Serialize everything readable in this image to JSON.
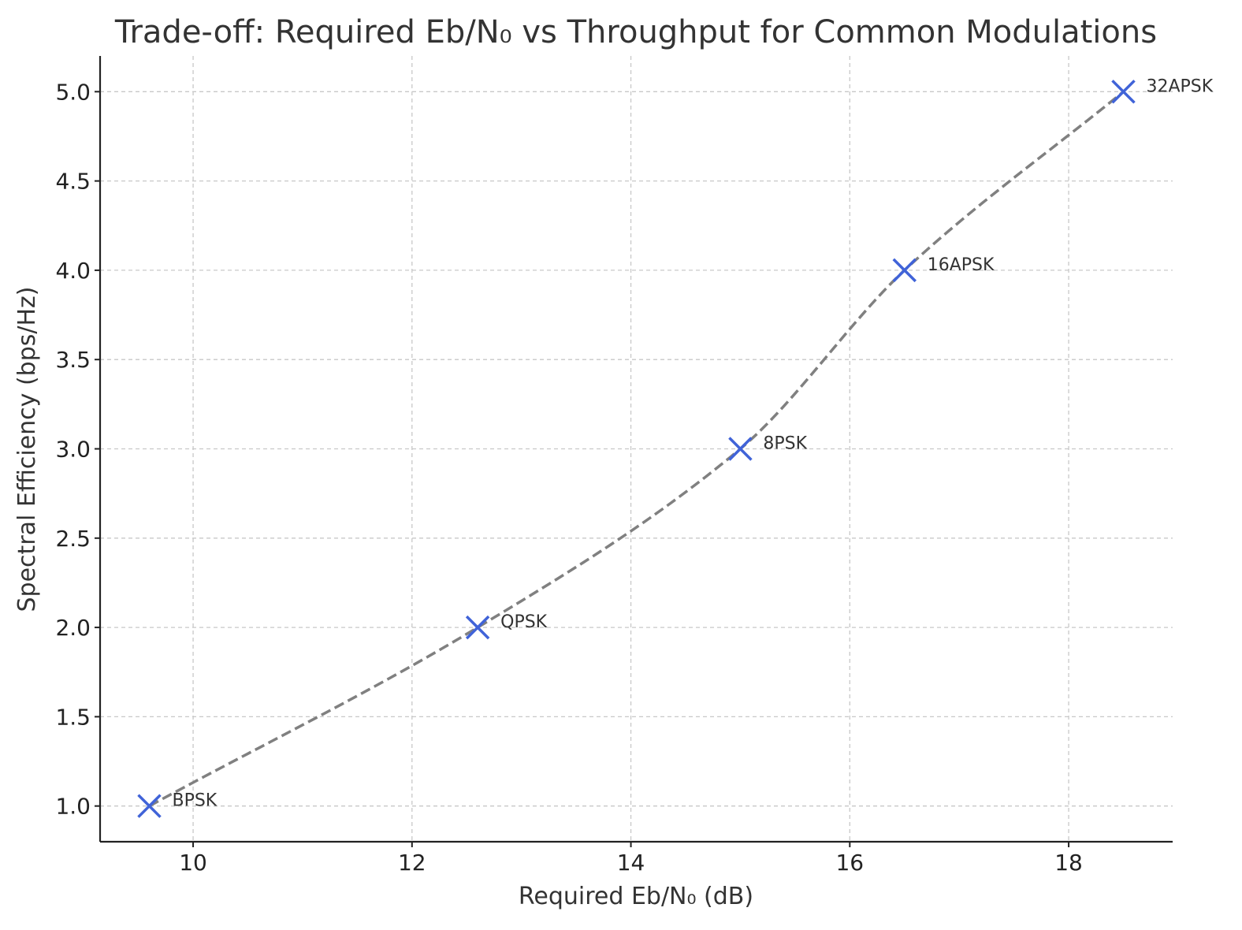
{
  "chart_data": {
    "type": "line",
    "title": "Trade-off: Required Eb/N₀ vs Throughput for Common Modulations",
    "xlabel": "Required Eb/N₀ (dB)",
    "ylabel": "Spectral Efficiency (bps/Hz)",
    "xlim": [
      9.15,
      18.95
    ],
    "ylim": [
      0.8,
      5.2
    ],
    "xticks": [
      10,
      12,
      14,
      16,
      18
    ],
    "xtick_labels": [
      "10",
      "12",
      "14",
      "16",
      "18"
    ],
    "yticks": [
      1.0,
      1.5,
      2.0,
      2.5,
      3.0,
      3.5,
      4.0,
      4.5,
      5.0
    ],
    "ytick_labels": [
      "1.0",
      "1.5",
      "2.0",
      "2.5",
      "3.0",
      "3.5",
      "4.0",
      "4.5",
      "5.0"
    ],
    "grid": true,
    "line_style": "dashed",
    "marker": "x",
    "colors": {
      "marker": "#4063d8",
      "line": "#808080"
    },
    "points": [
      {
        "label": "BPSK",
        "x": 9.6,
        "y": 1.0
      },
      {
        "label": "QPSK",
        "x": 12.6,
        "y": 2.0
      },
      {
        "label": "8PSK",
        "x": 15.0,
        "y": 3.0
      },
      {
        "label": "16APSK",
        "x": 16.5,
        "y": 4.0
      },
      {
        "label": "32APSK",
        "x": 18.5,
        "y": 5.0
      }
    ]
  }
}
